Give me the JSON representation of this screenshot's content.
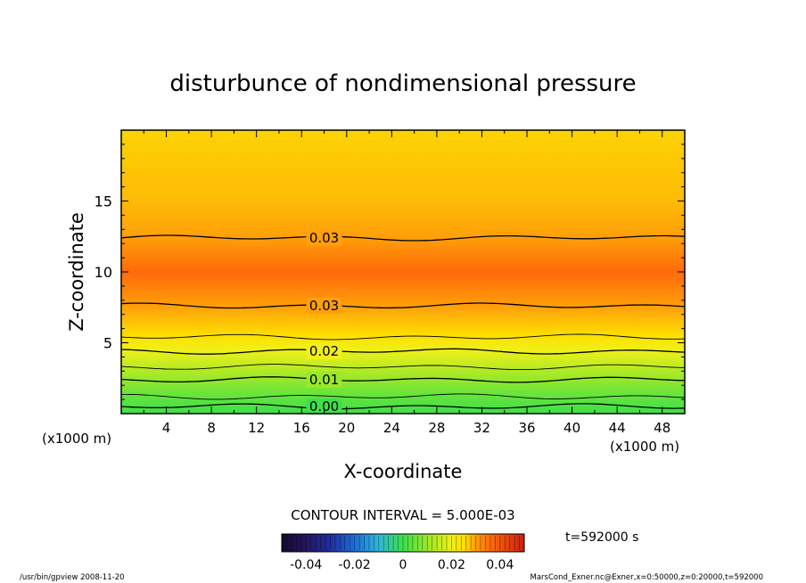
{
  "chart_data": {
    "type": "contour",
    "title": "disturbunce of nondimensional pressure",
    "xlabel": "X-coordinate",
    "ylabel": "Z-coordinate",
    "x_unit_left": "(x1000 m)",
    "x_unit_right": "(x1000 m)",
    "xlim": [
      0,
      50
    ],
    "ylim": [
      0,
      20
    ],
    "x_ticks": [
      4,
      8,
      12,
      16,
      20,
      24,
      28,
      32,
      36,
      40,
      44,
      48
    ],
    "y_ticks": [
      5,
      10,
      15
    ],
    "contour_interval_text": "CONTOUR INTERVAL = 5.000E-03",
    "contour_labels": [
      "0.03",
      "0.03",
      "0.02",
      "0.01",
      "0.00"
    ],
    "contour_lines": [
      {
        "z": 12.4,
        "label": "0.03"
      },
      {
        "z": 7.6,
        "label": "0.03"
      },
      {
        "z": 4.4,
        "label": "0.02"
      },
      {
        "z": 2.4,
        "label": "0.01"
      },
      {
        "z": 0.5,
        "label": "0.00"
      }
    ],
    "extra_contours_z": [
      1.2,
      3.3,
      5.4
    ],
    "profile": [
      {
        "z": 0.0,
        "value": 0.0
      },
      {
        "z": 1.5,
        "value": 0.005
      },
      {
        "z": 2.5,
        "value": 0.01
      },
      {
        "z": 3.5,
        "value": 0.015
      },
      {
        "z": 4.5,
        "value": 0.02
      },
      {
        "z": 5.5,
        "value": 0.025
      },
      {
        "z": 7.5,
        "value": 0.03
      },
      {
        "z": 10.0,
        "value": 0.036
      },
      {
        "z": 12.5,
        "value": 0.03
      },
      {
        "z": 15.0,
        "value": 0.028
      },
      {
        "z": 20.0,
        "value": 0.026
      }
    ],
    "colorbar": {
      "range": [
        -0.05,
        0.05
      ],
      "tick_labels": [
        "-0.04",
        "-0.02",
        "0",
        "0.02",
        "0.04"
      ],
      "tick_values": [
        -0.04,
        -0.02,
        0,
        0.02,
        0.04
      ]
    }
  },
  "time_label": "t=592000 s",
  "footer_left": "/usr/bin/gpview   2008-11-20",
  "footer_right": "MarsCond_Exner.nc@Exner,x=0:50000,z=0:20000,t=592000"
}
